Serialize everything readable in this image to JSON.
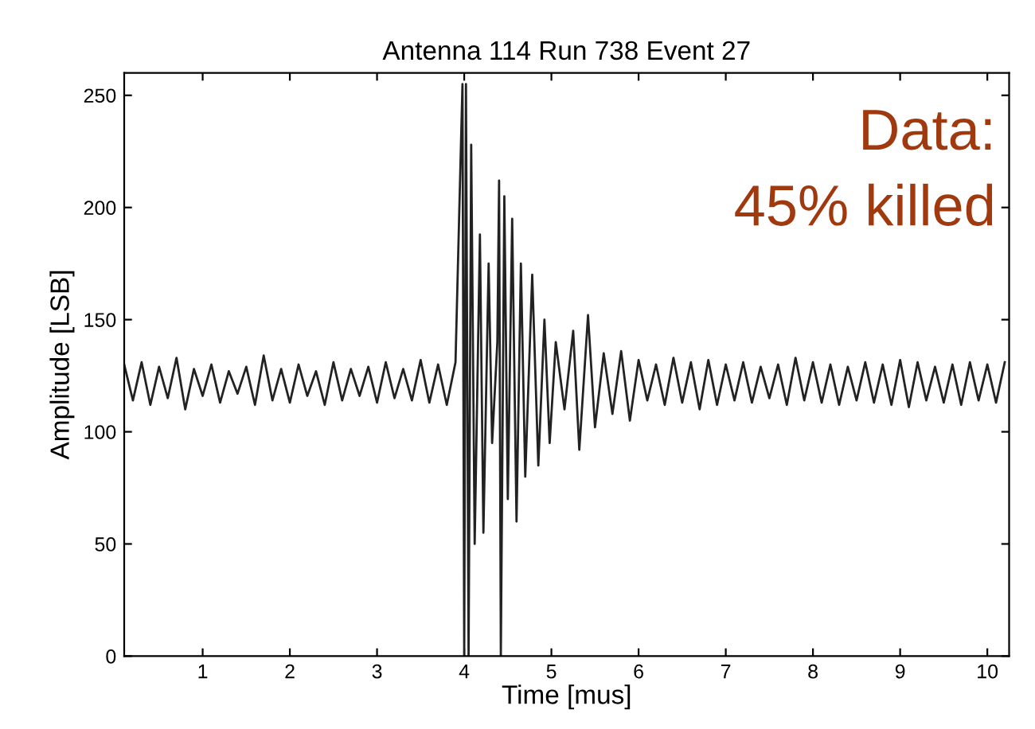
{
  "chart_data": {
    "type": "line",
    "title": "Antenna 114 Run 738 Event 27",
    "xlabel": "Time [mus]",
    "ylabel": "Amplitude [LSB]",
    "annotations": [
      "Data:",
      "45% killed"
    ],
    "series": [
      {
        "color": "#222222",
        "x": [
          0.1,
          0.2,
          0.3,
          0.4,
          0.5,
          0.6,
          0.7,
          0.8,
          0.9,
          1.0,
          1.1,
          1.2,
          1.3,
          1.4,
          1.5,
          1.6,
          1.7,
          1.8,
          1.9,
          2.0,
          2.1,
          2.2,
          2.3,
          2.4,
          2.5,
          2.6,
          2.7,
          2.8,
          2.9,
          3.0,
          3.1,
          3.2,
          3.3,
          3.4,
          3.5,
          3.6,
          3.7,
          3.8,
          3.9,
          3.98,
          4.0,
          4.02,
          4.05,
          4.08,
          4.12,
          4.18,
          4.22,
          4.28,
          4.32,
          4.38,
          4.4,
          4.42,
          4.46,
          4.5,
          4.55,
          4.6,
          4.65,
          4.7,
          4.78,
          4.85,
          4.92,
          4.98,
          5.05,
          5.15,
          5.25,
          5.32,
          5.42,
          5.5,
          5.6,
          5.7,
          5.8,
          5.9,
          6.0,
          6.1,
          6.2,
          6.3,
          6.4,
          6.5,
          6.6,
          6.7,
          6.8,
          6.9,
          7.0,
          7.1,
          7.2,
          7.3,
          7.4,
          7.5,
          7.6,
          7.7,
          7.8,
          7.9,
          8.0,
          8.1,
          8.2,
          8.3,
          8.4,
          8.5,
          8.6,
          8.7,
          8.8,
          8.9,
          9.0,
          9.1,
          9.2,
          9.3,
          9.4,
          9.5,
          9.6,
          9.7,
          9.8,
          9.9,
          10.0,
          10.1,
          10.2
        ],
        "values": [
          130,
          114,
          131,
          112,
          129,
          115,
          133,
          110,
          128,
          116,
          130,
          113,
          127,
          117,
          129,
          112,
          134,
          114,
          128,
          113,
          130,
          116,
          127,
          112,
          131,
          114,
          128,
          116,
          129,
          113,
          131,
          115,
          128,
          114,
          132,
          113,
          130,
          112,
          131,
          255,
          0,
          255,
          0,
          228,
          50,
          188,
          55,
          175,
          95,
          140,
          212,
          0,
          205,
          70,
          195,
          60,
          175,
          80,
          170,
          85,
          150,
          95,
          140,
          110,
          145,
          92,
          152,
          102,
          135,
          108,
          136,
          105,
          132,
          114,
          130,
          112,
          133,
          113,
          131,
          110,
          132,
          112,
          130,
          114,
          131,
          113,
          129,
          115,
          130,
          112,
          133,
          114,
          131,
          113,
          130,
          112,
          129,
          114,
          131,
          113,
          130,
          112,
          132,
          111,
          131,
          114,
          129,
          113,
          130,
          112,
          131,
          114,
          130,
          113,
          131
        ]
      }
    ],
    "xlim": [
      0.1,
      10.25
    ],
    "ylim": [
      0,
      260
    ],
    "xticks": [
      1,
      2,
      3,
      4,
      5,
      6,
      7,
      8,
      9,
      10
    ],
    "yticks": [
      0,
      50,
      100,
      150,
      200,
      250
    ],
    "grid": false,
    "legend": false,
    "marker": "none",
    "line_style": "solid"
  }
}
